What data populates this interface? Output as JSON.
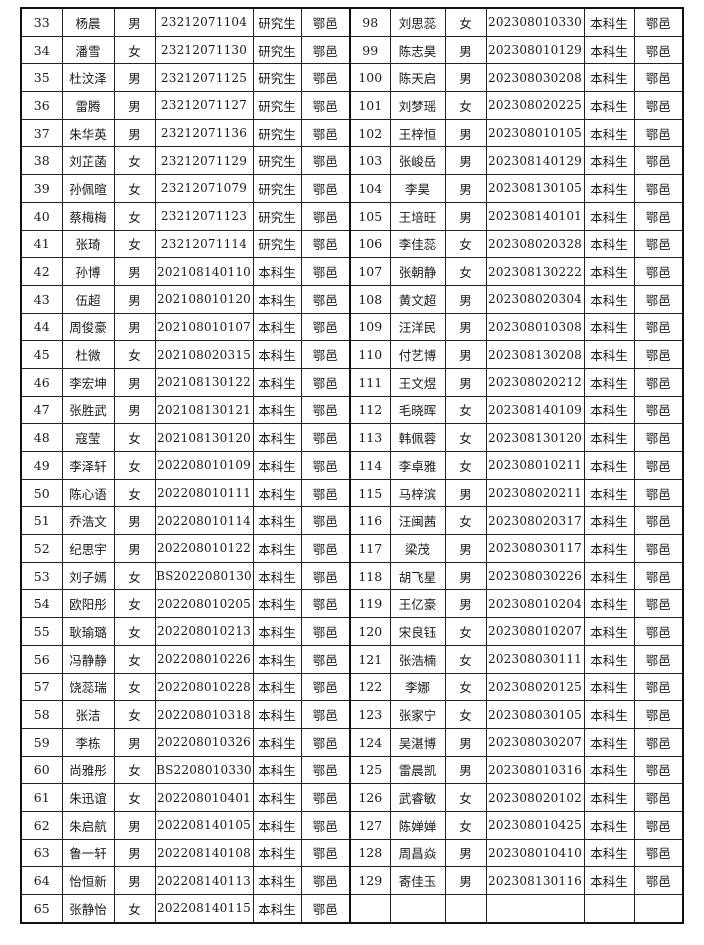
{
  "left_rows": [
    [
      "33",
      "杨晨",
      "男",
      "23212071104",
      "研究生",
      "鄂邑"
    ],
    [
      "34",
      "潘雪",
      "女",
      "23212071130",
      "研究生",
      "鄂邑"
    ],
    [
      "35",
      "杜汶泽",
      "男",
      "23212071125",
      "研究生",
      "鄂邑"
    ],
    [
      "36",
      "雷腾",
      "男",
      "23212071127",
      "研究生",
      "鄂邑"
    ],
    [
      "37",
      "朱华英",
      "男",
      "23212071136",
      "研究生",
      "鄂邑"
    ],
    [
      "38",
      "刘芷菡",
      "女",
      "23212071129",
      "研究生",
      "鄂邑"
    ],
    [
      "39",
      "孙佩暄",
      "女",
      "23212071079",
      "研究生",
      "鄂邑"
    ],
    [
      "40",
      "蔡梅梅",
      "女",
      "23212071123",
      "研究生",
      "鄂邑"
    ],
    [
      "41",
      "张琦",
      "女",
      "23212071114",
      "研究生",
      "鄂邑"
    ],
    [
      "42",
      "孙博",
      "男",
      "202108140110",
      "本科生",
      "鄂邑"
    ],
    [
      "43",
      "伍超",
      "男",
      "202108010120",
      "本科生",
      "鄂邑"
    ],
    [
      "44",
      "周俊豪",
      "男",
      "202108010107",
      "本科生",
      "鄂邑"
    ],
    [
      "45",
      "杜微",
      "女",
      "202108020315",
      "本科生",
      "鄂邑"
    ],
    [
      "46",
      "李宏坤",
      "男",
      "202108130122",
      "本科生",
      "鄂邑"
    ],
    [
      "47",
      "张胜武",
      "男",
      "202108130121",
      "本科生",
      "鄂邑"
    ],
    [
      "48",
      "寇莹",
      "女",
      "202108130120",
      "本科生",
      "鄂邑"
    ],
    [
      "49",
      "李泽轩",
      "女",
      "202208010109",
      "本科生",
      "鄂邑"
    ],
    [
      "50",
      "陈心语",
      "女",
      "202208010111",
      "本科生",
      "鄂邑"
    ],
    [
      "51",
      "乔浩文",
      "男",
      "202208010114",
      "本科生",
      "鄂邑"
    ],
    [
      "52",
      "纪思宇",
      "男",
      "202208010122",
      "本科生",
      "鄂邑"
    ],
    [
      "53",
      "刘子嫣",
      "女",
      "BS2022080130",
      "本科生",
      "鄂邑"
    ],
    [
      "54",
      "欧阳彤",
      "女",
      "202208010205",
      "本科生",
      "鄂邑"
    ],
    [
      "55",
      "耿瑜璐",
      "女",
      "202208010213",
      "本科生",
      "鄂邑"
    ],
    [
      "56",
      "冯静静",
      "女",
      "202208010226",
      "本科生",
      "鄂邑"
    ],
    [
      "57",
      "饶蕊瑞",
      "女",
      "202208010228",
      "本科生",
      "鄂邑"
    ],
    [
      "58",
      "张洁",
      "女",
      "202208010318",
      "本科生",
      "鄂邑"
    ],
    [
      "59",
      "李栋",
      "男",
      "202208010326",
      "本科生",
      "鄂邑"
    ],
    [
      "60",
      "尚雅彤",
      "女",
      "BS2208010330",
      "本科生",
      "鄂邑"
    ],
    [
      "61",
      "朱迅谊",
      "女",
      "202208010401",
      "本科生",
      "鄂邑"
    ],
    [
      "62",
      "朱启航",
      "男",
      "202208140105",
      "本科生",
      "鄂邑"
    ],
    [
      "63",
      "鲁一轩",
      "男",
      "202208140108",
      "本科生",
      "鄂邑"
    ],
    [
      "64",
      "怡恒新",
      "男",
      "202208140113",
      "本科生",
      "鄂邑"
    ],
    [
      "65",
      "张静怡",
      "女",
      "202208140115",
      "本科生",
      "鄂邑"
    ]
  ],
  "right_rows": [
    [
      "98",
      "刘思蕊",
      "女",
      "202308010330",
      "本科生",
      "鄂邑"
    ],
    [
      "99",
      "陈志昊",
      "男",
      "202308010129",
      "本科生",
      "鄂邑"
    ],
    [
      "100",
      "陈天启",
      "男",
      "202308030208",
      "本科生",
      "鄂邑"
    ],
    [
      "101",
      "刘梦瑶",
      "女",
      "202308020225",
      "本科生",
      "鄂邑"
    ],
    [
      "102",
      "王梓恒",
      "男",
      "202308010105",
      "本科生",
      "鄂邑"
    ],
    [
      "103",
      "张峻岳",
      "男",
      "202308140129",
      "本科生",
      "鄂邑"
    ],
    [
      "104",
      "李昊",
      "男",
      "202308130105",
      "本科生",
      "鄂邑"
    ],
    [
      "105",
      "王培旺",
      "男",
      "202308140101",
      "本科生",
      "鄂邑"
    ],
    [
      "106",
      "李佳蕊",
      "女",
      "202308020328",
      "本科生",
      "鄂邑"
    ],
    [
      "107",
      "张朝静",
      "女",
      "202308130222",
      "本科生",
      "鄂邑"
    ],
    [
      "108",
      "黄文超",
      "男",
      "202308020304",
      "本科生",
      "鄂邑"
    ],
    [
      "109",
      "汪洋民",
      "男",
      "202308010308",
      "本科生",
      "鄂邑"
    ],
    [
      "110",
      "付艺博",
      "男",
      "202308130208",
      "本科生",
      "鄂邑"
    ],
    [
      "111",
      "王文煜",
      "男",
      "202308020212",
      "本科生",
      "鄂邑"
    ],
    [
      "112",
      "毛晓晖",
      "女",
      "202308140109",
      "本科生",
      "鄂邑"
    ],
    [
      "113",
      "韩佩蓉",
      "女",
      "202308130120",
      "本科生",
      "鄂邑"
    ],
    [
      "114",
      "李卓雅",
      "女",
      "202308010211",
      "本科生",
      "鄂邑"
    ],
    [
      "115",
      "马梓滨",
      "男",
      "202308020211",
      "本科生",
      "鄂邑"
    ],
    [
      "116",
      "汪闽茜",
      "女",
      "202308020317",
      "本科生",
      "鄂邑"
    ],
    [
      "117",
      "梁茂",
      "男",
      "202308030117",
      "本科生",
      "鄂邑"
    ],
    [
      "118",
      "胡飞星",
      "男",
      "202308030226",
      "本科生",
      "鄂邑"
    ],
    [
      "119",
      "王亿豪",
      "男",
      "202308010204",
      "本科生",
      "鄂邑"
    ],
    [
      "120",
      "宋良钰",
      "女",
      "202308010207",
      "本科生",
      "鄂邑"
    ],
    [
      "121",
      "张浩楠",
      "女",
      "202308030111",
      "本科生",
      "鄂邑"
    ],
    [
      "122",
      "李娜",
      "女",
      "202308020125",
      "本科生",
      "鄂邑"
    ],
    [
      "123",
      "张家宁",
      "女",
      "202308030105",
      "本科生",
      "鄂邑"
    ],
    [
      "124",
      "吴湛博",
      "男",
      "202308030207",
      "本科生",
      "鄂邑"
    ],
    [
      "125",
      "雷晨凯",
      "男",
      "202308010316",
      "本科生",
      "鄂邑"
    ],
    [
      "126",
      "武睿敏",
      "女",
      "202308020102",
      "本科生",
      "鄂邑"
    ],
    [
      "127",
      "陈婵婵",
      "女",
      "202308010425",
      "本科生",
      "鄂邑"
    ],
    [
      "128",
      "周昌焱",
      "男",
      "202308010410",
      "本科生",
      "鄂邑"
    ],
    [
      "129",
      "寄佳玉",
      "男",
      "202308130116",
      "本科生",
      "鄂邑"
    ]
  ]
}
